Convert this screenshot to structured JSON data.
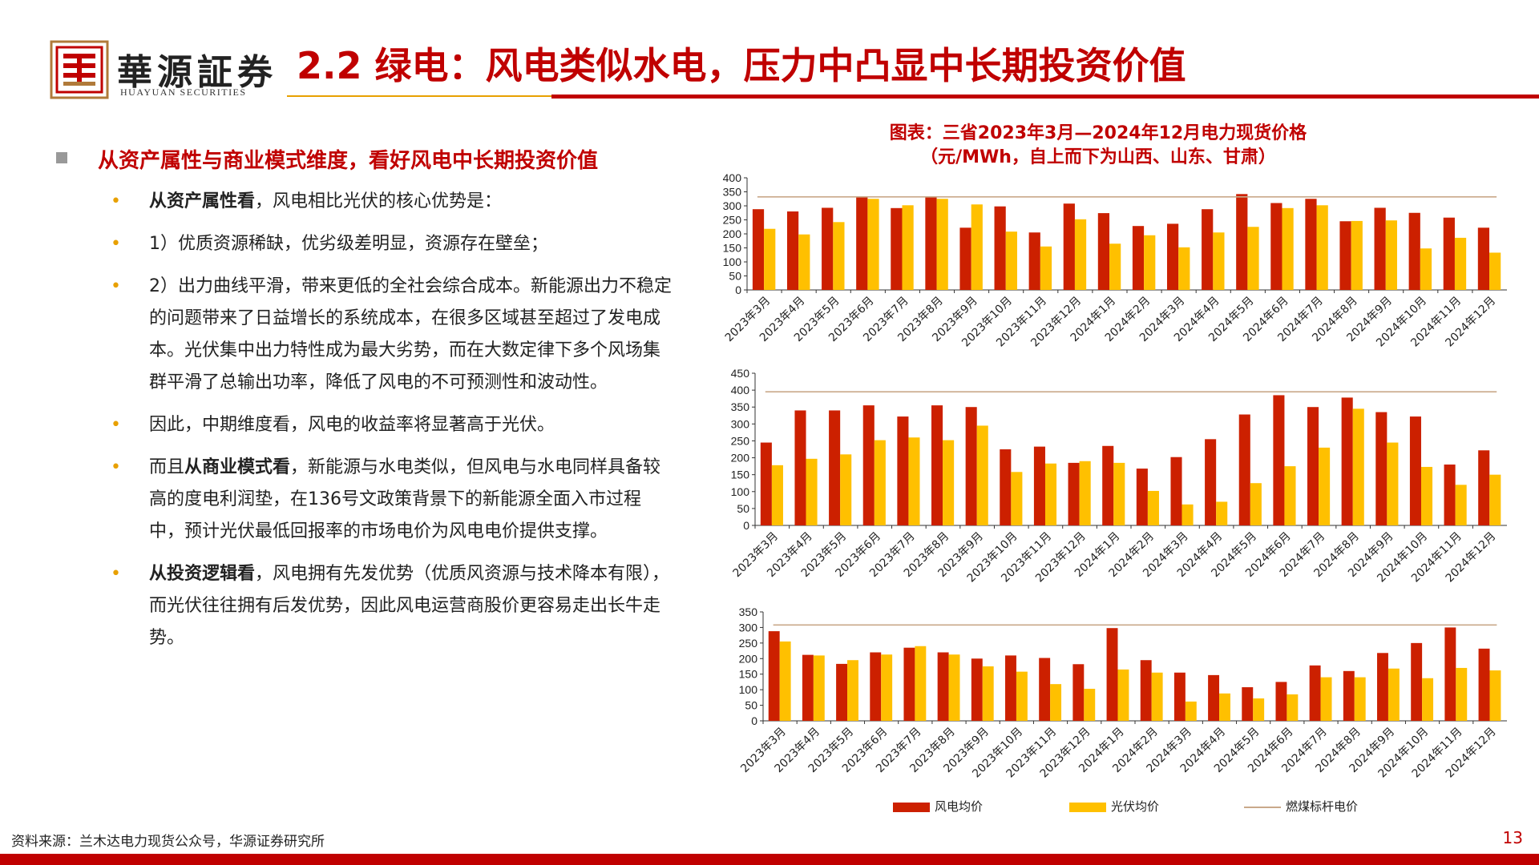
{
  "brand": {
    "name_cn": "華源証券",
    "name_en": "HUAYUAN SECURITIES"
  },
  "page_title": "2.2 绿电：风电类似水电，压力中凸显中长期投资价值",
  "section_title": "从资产属性与商业模式维度，看好风电中长期投资价值",
  "bullets": [
    {
      "bold": "从资产属性看",
      "text": "，风电相比光伏的核心优势是："
    },
    {
      "bold": "",
      "text": "1）优质资源稀缺，优劣级差明显，资源存在壁垒；"
    },
    {
      "bold": "",
      "text": "2）出力曲线平滑，带来更低的全社会综合成本。新能源出力不稳定的问题带来了日益增长的系统成本，在很多区域甚至超过了发电成本。光伏集中出力特性成为最大劣势，而在大数定律下多个风场集群平滑了总输出功率，降低了风电的不可预测性和波动性。"
    },
    {
      "bold": "",
      "text": "因此，中期维度看，风电的收益率将显著高于光伏。"
    },
    {
      "bold": "",
      "pre": "而且",
      "bold2": "从商业模式看",
      "text": "，新能源与水电类似，但风电与水电同样具备较高的度电利润垫，在136号文政策背景下的新能源全面入市过程中，预计光伏最低回报率的市场电价为风电电价提供支撑。"
    },
    {
      "bold": "从投资逻辑看",
      "text": "，风电拥有先发优势（优质风资源与技术降本有限），而光伏往往拥有后发优势，因此风电运营商股价更容易走出长牛走势。"
    }
  ],
  "chart_title_line1": "图表：三省2023年3月—2024年12月电力现货价格",
  "chart_title_line2": "（元/MWh，自上而下为山西、山东、甘肃）",
  "legend": {
    "wind": "风电均价",
    "solar": "光伏均价",
    "coal": "燃煤标杆电价"
  },
  "colors": {
    "wind": "#CC2000",
    "solar": "#FFC000",
    "coal": "#C9A98A",
    "accent": "#C00000"
  },
  "source": "资料来源：兰木达电力现货公众号，华源证券研究所",
  "page_number": "13",
  "chart_data": [
    {
      "type": "bar",
      "categories": [
        "2023年3月",
        "2023年4月",
        "2023年5月",
        "2023年6月",
        "2023年7月",
        "2023年8月",
        "2023年9月",
        "2023年10月",
        "2023年11月",
        "2023年12月",
        "2024年1月",
        "2024年2月",
        "2024年3月",
        "2024年4月",
        "2024年5月",
        "2024年6月",
        "2024年7月",
        "2024年8月",
        "2024年9月",
        "2024年10月",
        "2024年11月",
        "2024年12月"
      ],
      "series": [
        {
          "name": "风电均价",
          "values": [
            288,
            280,
            293,
            330,
            292,
            330,
            222,
            298,
            205,
            308,
            274,
            228,
            236,
            288,
            342,
            310,
            325,
            245,
            293,
            275,
            258,
            222
          ]
        },
        {
          "name": "光伏均价",
          "values": [
            218,
            198,
            242,
            325,
            302,
            325,
            305,
            208,
            155,
            252,
            165,
            195,
            152,
            205,
            225,
            292,
            302,
            246,
            248,
            148,
            186,
            133
          ]
        }
      ],
      "reference_line": {
        "name": "燃煤标杆电价",
        "value": 332
      },
      "ylim": [
        0,
        400
      ],
      "yticks": [
        0,
        50,
        100,
        150,
        200,
        250,
        300,
        350,
        400
      ]
    },
    {
      "type": "bar",
      "categories": [
        "2023年3月",
        "2023年4月",
        "2023年5月",
        "2023年6月",
        "2023年7月",
        "2023年8月",
        "2023年9月",
        "2023年10月",
        "2023年11月",
        "2023年12月",
        "2024年1月",
        "2024年2月",
        "2024年3月",
        "2024年4月",
        "2024年5月",
        "2024年6月",
        "2024年7月",
        "2024年8月",
        "2024年9月",
        "2024年10月",
        "2024年11月",
        "2024年12月"
      ],
      "series": [
        {
          "name": "风电均价",
          "values": [
            245,
            340,
            340,
            355,
            322,
            355,
            350,
            225,
            233,
            185,
            235,
            168,
            202,
            255,
            328,
            385,
            350,
            378,
            335,
            322,
            180,
            222
          ]
        },
        {
          "name": "光伏均价",
          "values": [
            178,
            197,
            210,
            252,
            260,
            252,
            295,
            158,
            183,
            190,
            185,
            102,
            62,
            70,
            125,
            175,
            230,
            345,
            245,
            173,
            120,
            150
          ]
        }
      ],
      "reference_line": {
        "name": "燃煤标杆电价",
        "value": 395
      },
      "ylim": [
        0,
        450
      ],
      "yticks": [
        0,
        50,
        100,
        150,
        200,
        250,
        300,
        350,
        400,
        450
      ]
    },
    {
      "type": "bar",
      "categories": [
        "2023年3月",
        "2023年4月",
        "2023年5月",
        "2023年6月",
        "2023年7月",
        "2023年8月",
        "2023年9月",
        "2023年10月",
        "2023年11月",
        "2023年12月",
        "2024年1月",
        "2024年2月",
        "2024年3月",
        "2024年4月",
        "2024年5月",
        "2024年6月",
        "2024年7月",
        "2024年8月",
        "2024年9月",
        "2024年10月",
        "2024年11月",
        "2024年12月"
      ],
      "series": [
        {
          "name": "风电均价",
          "values": [
            288,
            212,
            183,
            220,
            235,
            220,
            200,
            210,
            202,
            182,
            298,
            195,
            155,
            147,
            108,
            125,
            178,
            160,
            218,
            250,
            300,
            232
          ]
        },
        {
          "name": "光伏均价",
          "values": [
            255,
            210,
            195,
            213,
            240,
            213,
            175,
            158,
            118,
            103,
            165,
            155,
            62,
            88,
            72,
            85,
            140,
            140,
            168,
            137,
            170,
            162
          ]
        }
      ],
      "reference_line": {
        "name": "燃煤标杆电价",
        "value": 308
      },
      "ylim": [
        0,
        350
      ],
      "yticks": [
        0,
        50,
        100,
        150,
        200,
        250,
        300,
        350
      ]
    }
  ]
}
